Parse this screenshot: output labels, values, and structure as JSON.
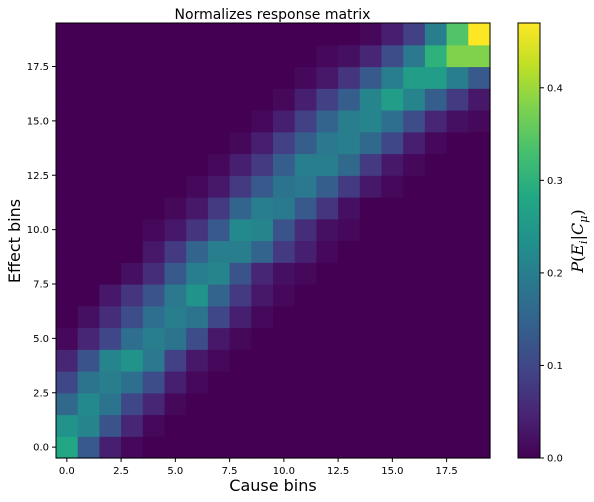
{
  "chart_data": {
    "type": "heatmap",
    "title": "Normalizes response matrix",
    "xlabel": "Cause bins",
    "ylabel": "Effect bins",
    "colorbar_label": "P(E_i|C_μ)",
    "colorbar_label_parts": {
      "p": "P",
      "open": "(",
      "e": "E",
      "i": "i",
      "bar": "|",
      "c": "C",
      "mu": "μ",
      "close": ")"
    },
    "colormap": "viridis",
    "xlim": [
      -0.5,
      19.5
    ],
    "ylim": [
      -0.5,
      19.5
    ],
    "vmin": 0,
    "vmax": 0.47,
    "x_ticks": [
      0.0,
      2.5,
      5.0,
      7.5,
      10.0,
      12.5,
      15.0,
      17.5
    ],
    "x_tick_labels": [
      "0.0",
      "2.5",
      "5.0",
      "7.5",
      "10.0",
      "12.5",
      "15.0",
      "17.5"
    ],
    "y_ticks": [
      0.0,
      2.5,
      5.0,
      7.5,
      10.0,
      12.5,
      15.0,
      17.5
    ],
    "y_tick_labels": [
      "0.0",
      "2.5",
      "5.0",
      "7.5",
      "10.0",
      "12.5",
      "15.0",
      "17.5"
    ],
    "colorbar_ticks": [
      0.0,
      0.1,
      0.2,
      0.3,
      0.4
    ],
    "colorbar_tick_labels": [
      "0.0",
      "0.1",
      "0.2",
      "0.3",
      "0.4"
    ],
    "x_bins": 20,
    "y_bins": 20,
    "z_note_rows": "rows indexed by effect bin 0..19, columns by cause bin 0..19",
    "z": [
      [
        0.28,
        0.13,
        0.04,
        0.01,
        0,
        0,
        0,
        0,
        0,
        0,
        0,
        0,
        0,
        0,
        0,
        0,
        0,
        0,
        0,
        0
      ],
      [
        0.24,
        0.21,
        0.12,
        0.05,
        0.01,
        0,
        0,
        0,
        0,
        0,
        0,
        0,
        0,
        0,
        0,
        0,
        0,
        0,
        0,
        0
      ],
      [
        0.16,
        0.22,
        0.18,
        0.1,
        0.05,
        0.01,
        0,
        0,
        0,
        0,
        0,
        0,
        0,
        0,
        0,
        0,
        0,
        0,
        0,
        0
      ],
      [
        0.1,
        0.18,
        0.2,
        0.17,
        0.11,
        0.04,
        0.01,
        0,
        0,
        0,
        0,
        0,
        0,
        0,
        0,
        0,
        0,
        0,
        0,
        0
      ],
      [
        0.05,
        0.12,
        0.21,
        0.24,
        0.19,
        0.09,
        0.03,
        0.01,
        0,
        0,
        0,
        0,
        0,
        0,
        0,
        0,
        0,
        0,
        0,
        0
      ],
      [
        0.01,
        0.05,
        0.1,
        0.17,
        0.2,
        0.18,
        0.11,
        0.03,
        0.01,
        0,
        0,
        0,
        0,
        0,
        0,
        0,
        0,
        0,
        0,
        0
      ],
      [
        0,
        0.02,
        0.06,
        0.11,
        0.17,
        0.2,
        0.18,
        0.1,
        0.04,
        0.01,
        0,
        0,
        0,
        0,
        0,
        0,
        0,
        0,
        0,
        0
      ],
      [
        0,
        0,
        0.03,
        0.07,
        0.12,
        0.19,
        0.24,
        0.15,
        0.08,
        0.03,
        0.01,
        0,
        0,
        0,
        0,
        0,
        0,
        0,
        0,
        0
      ],
      [
        0,
        0,
        0,
        0.02,
        0.06,
        0.13,
        0.2,
        0.21,
        0.12,
        0.05,
        0.02,
        0.01,
        0,
        0,
        0,
        0,
        0,
        0,
        0,
        0
      ],
      [
        0,
        0,
        0,
        0,
        0.03,
        0.08,
        0.15,
        0.2,
        0.2,
        0.15,
        0.08,
        0.04,
        0.01,
        0,
        0,
        0,
        0,
        0,
        0,
        0
      ],
      [
        0,
        0,
        0,
        0,
        0.01,
        0.03,
        0.07,
        0.13,
        0.22,
        0.21,
        0.12,
        0.06,
        0.02,
        0.01,
        0,
        0,
        0,
        0,
        0,
        0
      ],
      [
        0,
        0,
        0,
        0,
        0,
        0.01,
        0.03,
        0.08,
        0.15,
        0.2,
        0.19,
        0.13,
        0.07,
        0.02,
        0,
        0,
        0,
        0,
        0,
        0
      ],
      [
        0,
        0,
        0,
        0,
        0,
        0,
        0.01,
        0.03,
        0.08,
        0.13,
        0.18,
        0.19,
        0.14,
        0.08,
        0.03,
        0.01,
        0,
        0,
        0,
        0
      ],
      [
        0,
        0,
        0,
        0,
        0,
        0,
        0,
        0.01,
        0.04,
        0.08,
        0.14,
        0.2,
        0.2,
        0.16,
        0.08,
        0.03,
        0.01,
        0,
        0,
        0
      ],
      [
        0,
        0,
        0,
        0,
        0,
        0,
        0,
        0,
        0.01,
        0.04,
        0.09,
        0.14,
        0.19,
        0.2,
        0.16,
        0.1,
        0.04,
        0.01,
        0,
        0
      ],
      [
        0,
        0,
        0,
        0,
        0,
        0,
        0,
        0,
        0,
        0.01,
        0.04,
        0.09,
        0.15,
        0.2,
        0.21,
        0.17,
        0.11,
        0.05,
        0.02,
        0.01
      ],
      [
        0,
        0,
        0,
        0,
        0,
        0,
        0,
        0,
        0,
        0,
        0.01,
        0.04,
        0.09,
        0.14,
        0.21,
        0.26,
        0.21,
        0.14,
        0.08,
        0.03
      ],
      [
        0,
        0,
        0,
        0,
        0,
        0,
        0,
        0,
        0,
        0,
        0,
        0.01,
        0.03,
        0.07,
        0.13,
        0.2,
        0.26,
        0.26,
        0.2,
        0.13
      ],
      [
        0,
        0,
        0,
        0,
        0,
        0,
        0,
        0,
        0,
        0,
        0,
        0,
        0.01,
        0.02,
        0.05,
        0.11,
        0.19,
        0.3,
        0.38,
        0.38
      ],
      [
        0,
        0,
        0,
        0,
        0,
        0,
        0,
        0,
        0,
        0,
        0,
        0,
        0,
        0,
        0.01,
        0.04,
        0.09,
        0.2,
        0.34,
        0.47
      ]
    ]
  }
}
